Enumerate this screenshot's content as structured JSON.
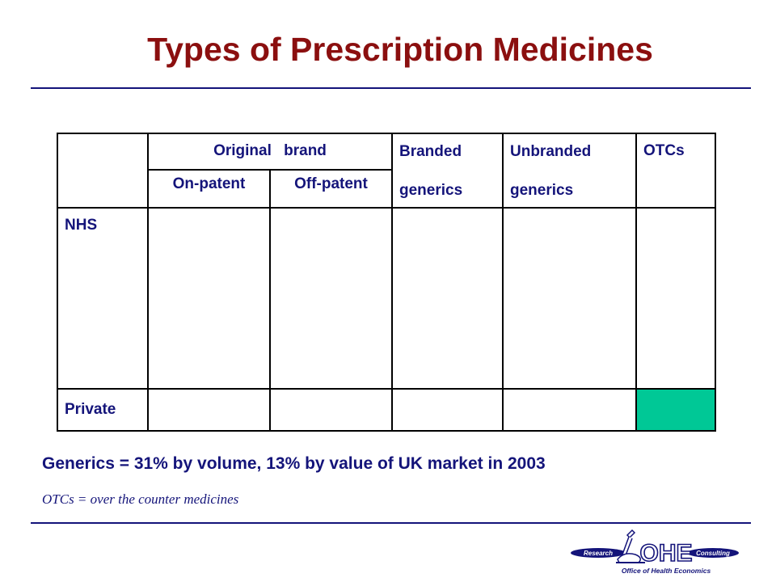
{
  "title": "Types of Prescription Medicines",
  "table": {
    "header": {
      "original_brand": "Original brand",
      "on_patent": "On-patent",
      "off_patent": "Off-patent",
      "branded_generics": [
        "Branded",
        "generics"
      ],
      "unbranded_generics": [
        "Unbranded",
        "generics"
      ],
      "otcs": "OTCs"
    },
    "rows": [
      {
        "label": "NHS"
      },
      {
        "label": "Private"
      }
    ],
    "highlight_color": "#00c896"
  },
  "note_generics": "Generics = 31% by volume, 13% by value of UK market in 2003",
  "note_otc": "OTCs = over the counter medicines",
  "logo": {
    "left_tag": "Research",
    "name": "OHE",
    "right_tag": "Consulting",
    "subtitle": "Office of Health Economics"
  },
  "colors": {
    "title": "#8b0f0f",
    "text": "#14147a",
    "rule": "#14147a"
  }
}
